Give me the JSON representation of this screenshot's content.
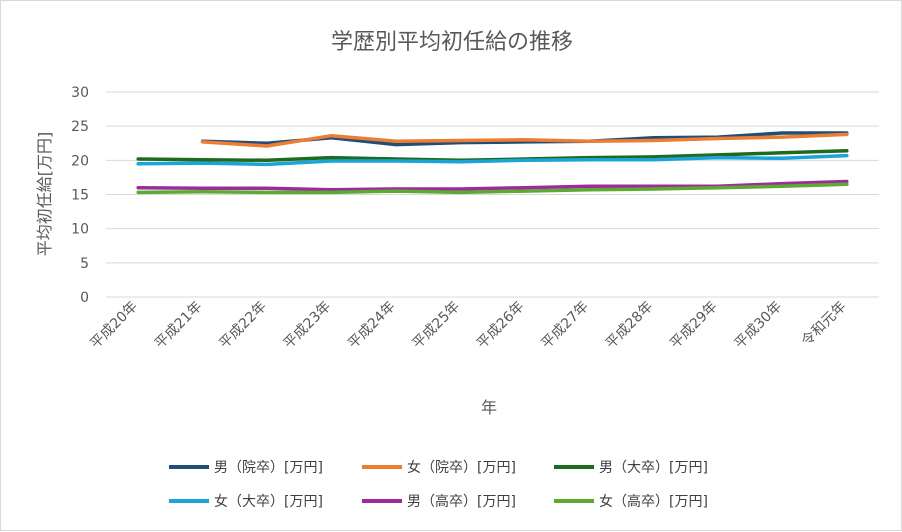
{
  "chart_data": {
    "type": "line",
    "title": "学歴別平均初任給の推移",
    "xlabel": "年",
    "ylabel": "平均初任給[万円]",
    "ylim": [
      0,
      30
    ],
    "yticks": [
      0,
      5,
      10,
      15,
      20,
      25,
      30
    ],
    "grid": true,
    "legend_position": "bottom",
    "categories": [
      "平成20年",
      "平成21年",
      "平成22年",
      "平成23年",
      "平成24年",
      "平成25年",
      "平成26年",
      "平成27年",
      "平成28年",
      "平成29年",
      "平成30年",
      "令和元年"
    ],
    "series": [
      {
        "name": "男（院卒）[万円]",
        "color": "#1F4E79",
        "values": [
          null,
          22.8,
          22.5,
          23.3,
          22.3,
          22.6,
          22.7,
          22.8,
          23.3,
          23.4,
          24.0,
          24.0
        ]
      },
      {
        "name": "女（院卒）[万円]",
        "color": "#ED7D31",
        "values": [
          null,
          22.7,
          22.1,
          23.6,
          22.8,
          22.9,
          23.0,
          22.8,
          22.9,
          23.2,
          23.4,
          23.8
        ]
      },
      {
        "name": "男（大卒）[万円]",
        "color": "#1E6B20",
        "values": [
          20.2,
          20.1,
          20.0,
          20.4,
          20.2,
          20.0,
          20.2,
          20.4,
          20.5,
          20.8,
          21.1,
          21.4
        ]
      },
      {
        "name": "女（大卒）[万円]",
        "color": "#1AA4D8",
        "values": [
          19.5,
          19.6,
          19.4,
          19.9,
          19.9,
          19.8,
          20.0,
          20.1,
          20.1,
          20.4,
          20.3,
          20.7
        ]
      },
      {
        "name": "男（高卒）[万円]",
        "color": "#9B2D9B",
        "values": [
          16.0,
          15.9,
          15.9,
          15.7,
          15.8,
          15.8,
          16.0,
          16.2,
          16.2,
          16.2,
          16.6,
          16.9
        ]
      },
      {
        "name": "女（高卒）[万円]",
        "color": "#5CAA32",
        "values": [
          15.3,
          15.4,
          15.3,
          15.3,
          15.5,
          15.3,
          15.5,
          15.7,
          15.8,
          16.0,
          16.2,
          16.5
        ]
      }
    ]
  }
}
